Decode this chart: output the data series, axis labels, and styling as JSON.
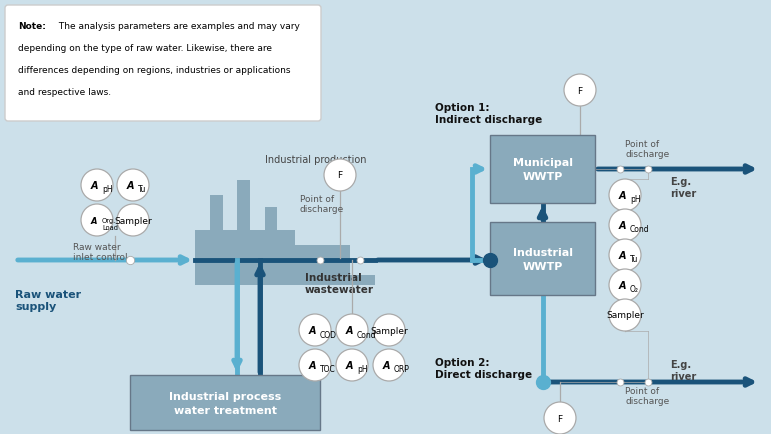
{
  "bg_color": "#cce0ea",
  "dark_arrow": "#1a537a",
  "light_arrow": "#5ab0d0",
  "box_color": "#8aaabb",
  "note_text_lines": [
    "The analysis parameters are examples and may vary",
    "depending on the type of raw water. Likewise, there are",
    "differences depending on regions, industries or applications",
    "and respective laws."
  ],
  "option1_label": "Option 1:\nIndirect discharge",
  "option2_label": "Option 2:\nDirect discharge",
  "box1_label": "Municipal\nWWTP",
  "box2_label": "Industrial\nWWTP",
  "box3_label": "Industrial process\nwater treatment",
  "ind_prod_label": "Industrial production",
  "raw_water_ctrl": "Raw water\ninlet control",
  "raw_water_supply": "Raw water\nsupply",
  "ind_wastewater": "Industrial\nwastewater",
  "point_discharge": "Point of\ndischarge",
  "eg_river": "E.g.\nriver"
}
